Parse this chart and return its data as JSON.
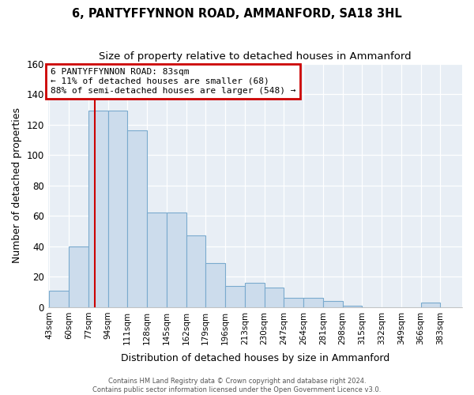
{
  "title": "6, PANTYFFYNNON ROAD, AMMANFORD, SA18 3HL",
  "subtitle": "Size of property relative to detached houses in Ammanford",
  "xlabel": "Distribution of detached houses by size in Ammanford",
  "ylabel": "Number of detached properties",
  "bin_labels": [
    "43sqm",
    "60sqm",
    "77sqm",
    "94sqm",
    "111sqm",
    "128sqm",
    "145sqm",
    "162sqm",
    "179sqm",
    "196sqm",
    "213sqm",
    "230sqm",
    "247sqm",
    "264sqm",
    "281sqm",
    "298sqm",
    "315sqm",
    "332sqm",
    "349sqm",
    "366sqm",
    "383sqm"
  ],
  "bar_heights": [
    11,
    40,
    129,
    129,
    116,
    62,
    62,
    47,
    29,
    14,
    16,
    13,
    6,
    6,
    4,
    1,
    0,
    0,
    0,
    3,
    0
  ],
  "bar_color": "#ccdcec",
  "bar_edge_color": "#7aaace",
  "vline_x": 83,
  "vline_color": "#cc0000",
  "bin_edges_values": [
    43,
    60,
    77,
    94,
    111,
    128,
    145,
    162,
    179,
    196,
    213,
    230,
    247,
    264,
    281,
    298,
    315,
    332,
    349,
    366,
    383,
    400
  ],
  "ylim": [
    0,
    160
  ],
  "yticks": [
    0,
    20,
    40,
    60,
    80,
    100,
    120,
    140,
    160
  ],
  "annotation_text": "6 PANTYFFYNNON ROAD: 83sqm\n← 11% of detached houses are smaller (68)\n88% of semi-detached houses are larger (548) →",
  "annotation_box_edgecolor": "#cc0000",
  "footer1": "Contains HM Land Registry data © Crown copyright and database right 2024.",
  "footer2": "Contains public sector information licensed under the Open Government Licence v3.0.",
  "fig_bg_color": "#ffffff",
  "axes_bg_color": "#e8eef5",
  "grid_color": "#ffffff"
}
